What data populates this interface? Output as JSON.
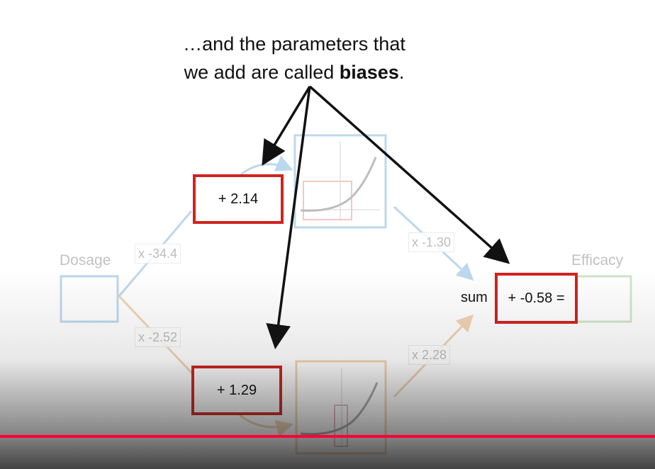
{
  "caption": {
    "line1": "…and the parameters that",
    "line2_prefix": "we add are called ",
    "line2_bold": "biases",
    "line2_suffix": "."
  },
  "input_label": "Dosage",
  "output_label": "Efficacy",
  "weights": {
    "top_in": "x -34.4",
    "bottom_in": "x -2.52",
    "top_out": "x -1.30",
    "bottom_out": "x 2.28"
  },
  "biases": {
    "top": "+ 2.14",
    "bottom": "+ 1.29",
    "output": "+ -0.58 ="
  },
  "sum_label": "sum",
  "colors": {
    "highlight": "#d0231f",
    "blue_faded": "#bcd8ee",
    "orange_faded": "#f2d3b4",
    "green_faded": "#cfe6c8",
    "progress": "#ff0033"
  },
  "video_progress": 1.0
}
